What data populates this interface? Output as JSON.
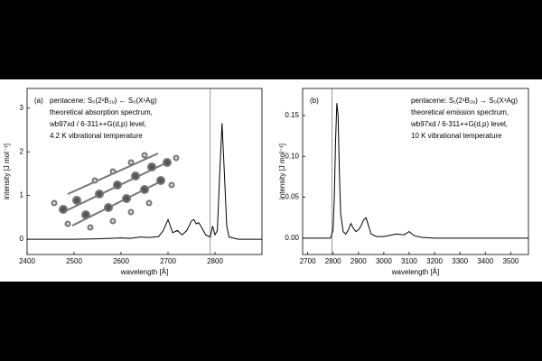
{
  "chart_data": [
    {
      "type": "line",
      "panel_label": "(a)",
      "annotation": [
        "pentacene: S₀(2¹B₂ᵤ) ← S₀(X¹Ag)",
        "theoretical absorption spectrum,",
        "wb97xd / 6-311++G(d,p) level,",
        "4.2 K vibrational temperature"
      ],
      "x_label": "wavelength [Å]",
      "y_label": "intensity [J mol⁻¹]",
      "x": [
        2400,
        2500,
        2550,
        2600,
        2620,
        2640,
        2660,
        2680,
        2690,
        2700,
        2705,
        2710,
        2720,
        2730,
        2740,
        2750,
        2755,
        2760,
        2765,
        2770,
        2780,
        2790,
        2795,
        2800,
        2805,
        2810,
        2815,
        2820,
        2825,
        2830,
        2850,
        2900
      ],
      "values": [
        0,
        0,
        0.01,
        0.03,
        0.02,
        0.05,
        0.04,
        0.06,
        0.2,
        0.45,
        0.3,
        0.15,
        0.2,
        0.1,
        0.2,
        0.42,
        0.45,
        0.35,
        0.38,
        0.3,
        0.1,
        0.05,
        0.3,
        0.1,
        0.2,
        1.5,
        2.65,
        1.5,
        0.3,
        0.05,
        0,
        0
      ],
      "color": "#000000",
      "vline": 2790,
      "xlim": [
        2400,
        2900
      ],
      "xticks": [
        2400,
        2500,
        2600,
        2700,
        2800
      ],
      "ylim": [
        -0.35,
        3.45
      ],
      "yticks": [
        0,
        1,
        2,
        3
      ]
    },
    {
      "type": "line",
      "panel_label": "(b)",
      "annotation": [
        "pentacene: S₁(2¹B₂ᵤ) → S₀(X¹Ag)",
        "theoretical emission spectrum,",
        "wb97xd / 6-311++G(d,p) level,",
        "10 K vibrational temperature"
      ],
      "x_label": "wavelength [Å]",
      "y_label": "intensity [J mol⁻¹]",
      "x": [
        2680,
        2790,
        2800,
        2805,
        2810,
        2815,
        2820,
        2825,
        2830,
        2840,
        2850,
        2860,
        2870,
        2880,
        2890,
        2900,
        2910,
        2920,
        2930,
        2940,
        2950,
        2970,
        3000,
        3050,
        3080,
        3100,
        3120,
        3150,
        3200,
        3300,
        3570
      ],
      "values": [
        0,
        0,
        0.01,
        0.05,
        0.12,
        0.165,
        0.15,
        0.08,
        0.03,
        0.008,
        0.005,
        0.01,
        0.018,
        0.012,
        0.008,
        0.01,
        0.015,
        0.022,
        0.025,
        0.015,
        0.005,
        0.002,
        0.002,
        0.005,
        0.004,
        0.008,
        0.003,
        0.001,
        0,
        0,
        0
      ],
      "color": "#000000",
      "vline": 2795,
      "xlim": [
        2680,
        3570
      ],
      "xticks": [
        2700,
        2800,
        2900,
        3000,
        3100,
        3200,
        3300,
        3400,
        3500
      ],
      "ylim": [
        -0.02,
        0.183
      ],
      "yticks": [
        {
          "value": 0,
          "label": "0.00"
        },
        {
          "value": 0.05,
          "label": "0.05"
        },
        {
          "value": 0.1,
          "label": "0.10"
        },
        0.15
      ]
    }
  ]
}
